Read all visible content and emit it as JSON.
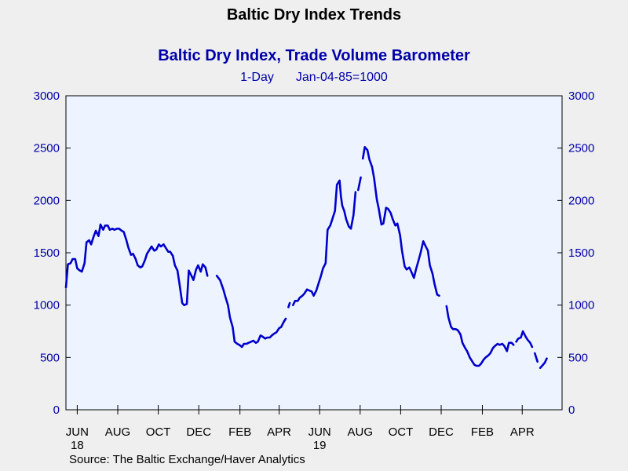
{
  "header": {
    "title": "Baltic Dry Index Trends"
  },
  "chart_data": {
    "type": "line",
    "title": "Baltic Dry Index, Trade Volume Barometer",
    "subtitle_left": "1-Day",
    "subtitle_right": "Jan-04-85=1000",
    "source": "Source:  The Baltic Exchange/Haver Analytics",
    "ylim": [
      0,
      3000
    ],
    "yticks": [
      0,
      500,
      1000,
      1500,
      2000,
      2500,
      3000
    ],
    "x_range": [
      "2018-05-15",
      "2020-05-31"
    ],
    "x_tick_labels": [
      {
        "date": "2018-06-01",
        "label": "JUN",
        "year": "18"
      },
      {
        "date": "2018-08-01",
        "label": "AUG"
      },
      {
        "date": "2018-10-01",
        "label": "OCT"
      },
      {
        "date": "2018-12-01",
        "label": "DEC"
      },
      {
        "date": "2019-02-01",
        "label": "FEB"
      },
      {
        "date": "2019-04-01",
        "label": "APR"
      },
      {
        "date": "2019-06-01",
        "label": "JUN",
        "year": "19"
      },
      {
        "date": "2019-08-01",
        "label": "AUG"
      },
      {
        "date": "2019-10-01",
        "label": "OCT"
      },
      {
        "date": "2019-12-01",
        "label": "DEC"
      },
      {
        "date": "2020-02-01",
        "label": "FEB"
      },
      {
        "date": "2020-04-01",
        "label": "APR"
      }
    ],
    "grid": false,
    "color": "#0000cc",
    "series": [
      {
        "segments": [
          [
            [
              "2018-05-15",
              1170
            ],
            [
              "2018-05-18",
              1390
            ],
            [
              "2018-05-22",
              1400
            ],
            [
              "2018-05-25",
              1440
            ],
            [
              "2018-05-29",
              1440
            ],
            [
              "2018-06-01",
              1350
            ],
            [
              "2018-06-05",
              1330
            ],
            [
              "2018-06-08",
              1320
            ],
            [
              "2018-06-12",
              1400
            ],
            [
              "2018-06-15",
              1600
            ],
            [
              "2018-06-19",
              1620
            ],
            [
              "2018-06-22",
              1580
            ],
            [
              "2018-06-26",
              1660
            ],
            [
              "2018-06-29",
              1710
            ],
            [
              "2018-07-03",
              1660
            ],
            [
              "2018-07-06",
              1770
            ],
            [
              "2018-07-10",
              1720
            ],
            [
              "2018-07-13",
              1760
            ],
            [
              "2018-07-17",
              1760
            ],
            [
              "2018-07-20",
              1720
            ],
            [
              "2018-07-24",
              1730
            ],
            [
              "2018-07-27",
              1720
            ],
            [
              "2018-07-31",
              1730
            ],
            [
              "2018-08-03",
              1730
            ],
            [
              "2018-08-07",
              1710
            ],
            [
              "2018-08-10",
              1700
            ],
            [
              "2018-08-14",
              1620
            ],
            [
              "2018-08-17",
              1550
            ],
            [
              "2018-08-21",
              1480
            ],
            [
              "2018-08-24",
              1490
            ],
            [
              "2018-08-28",
              1440
            ],
            [
              "2018-08-31",
              1380
            ],
            [
              "2018-09-04",
              1360
            ],
            [
              "2018-09-07",
              1370
            ],
            [
              "2018-09-11",
              1430
            ],
            [
              "2018-09-14",
              1490
            ],
            [
              "2018-09-18",
              1530
            ],
            [
              "2018-09-21",
              1560
            ],
            [
              "2018-09-25",
              1520
            ],
            [
              "2018-09-28",
              1530
            ],
            [
              "2018-10-02",
              1580
            ],
            [
              "2018-10-05",
              1560
            ],
            [
              "2018-10-09",
              1580
            ],
            [
              "2018-10-12",
              1550
            ],
            [
              "2018-10-16",
              1510
            ],
            [
              "2018-10-19",
              1510
            ],
            [
              "2018-10-23",
              1470
            ],
            [
              "2018-10-26",
              1380
            ],
            [
              "2018-10-30",
              1330
            ],
            [
              "2018-11-02",
              1200
            ],
            [
              "2018-11-06",
              1020
            ],
            [
              "2018-11-09",
              1000
            ],
            [
              "2018-11-13",
              1010
            ],
            [
              "2018-11-16",
              1330
            ],
            [
              "2018-11-20",
              1280
            ],
            [
              "2018-11-23",
              1240
            ],
            [
              "2018-11-27",
              1340
            ],
            [
              "2018-11-30",
              1380
            ],
            [
              "2018-12-04",
              1320
            ],
            [
              "2018-12-07",
              1390
            ],
            [
              "2018-12-11",
              1360
            ],
            [
              "2018-12-14",
              1280
            ]
          ],
          [
            [
              "2018-12-28",
              1280
            ],
            [
              "2019-01-02",
              1240
            ],
            [
              "2019-01-07",
              1150
            ],
            [
              "2019-01-10",
              1080
            ],
            [
              "2019-01-14",
              1000
            ],
            [
              "2019-01-17",
              880
            ],
            [
              "2019-01-21",
              790
            ],
            [
              "2019-01-24",
              650
            ],
            [
              "2019-01-28",
              630
            ],
            [
              "2019-01-31",
              620
            ],
            [
              "2019-02-04",
              600
            ],
            [
              "2019-02-07",
              630
            ],
            [
              "2019-02-11",
              630
            ],
            [
              "2019-02-14",
              640
            ],
            [
              "2019-02-18",
              650
            ],
            [
              "2019-02-21",
              660
            ],
            [
              "2019-02-25",
              640
            ],
            [
              "2019-02-28",
              650
            ],
            [
              "2019-03-04",
              710
            ],
            [
              "2019-03-07",
              700
            ],
            [
              "2019-03-11",
              680
            ],
            [
              "2019-03-14",
              690
            ],
            [
              "2019-03-18",
              690
            ],
            [
              "2019-03-21",
              710
            ],
            [
              "2019-03-25",
              730
            ],
            [
              "2019-03-28",
              740
            ],
            [
              "2019-04-01",
              780
            ],
            [
              "2019-04-04",
              790
            ],
            [
              "2019-04-08",
              840
            ],
            [
              "2019-04-11",
              870
            ]
          ],
          [
            [
              "2019-04-15",
              980
            ],
            [
              "2019-04-17",
              1020
            ]
          ],
          [
            [
              "2019-04-22",
              1000
            ],
            [
              "2019-04-25",
              1040
            ],
            [
              "2019-04-29",
              1040
            ],
            [
              "2019-05-02",
              1070
            ],
            [
              "2019-05-06",
              1090
            ],
            [
              "2019-05-09",
              1110
            ],
            [
              "2019-05-13",
              1150
            ],
            [
              "2019-05-16",
              1140
            ],
            [
              "2019-05-20",
              1130
            ],
            [
              "2019-05-23",
              1090
            ],
            [
              "2019-05-27",
              1140
            ],
            [
              "2019-05-30",
              1200
            ],
            [
              "2019-06-03",
              1280
            ],
            [
              "2019-06-06",
              1350
            ],
            [
              "2019-06-10",
              1400
            ],
            [
              "2019-06-13",
              1720
            ],
            [
              "2019-06-17",
              1760
            ],
            [
              "2019-06-20",
              1820
            ],
            [
              "2019-06-24",
              1900
            ],
            [
              "2019-06-27",
              2150
            ],
            [
              "2019-07-01",
              2190
            ],
            [
              "2019-07-03",
              2040
            ],
            [
              "2019-07-05",
              1950
            ],
            [
              "2019-07-08",
              1900
            ],
            [
              "2019-07-11",
              1820
            ],
            [
              "2019-07-15",
              1750
            ],
            [
              "2019-07-18",
              1730
            ],
            [
              "2019-07-22",
              1860
            ],
            [
              "2019-07-25",
              2080
            ]
          ],
          [
            [
              "2019-07-29",
              2100
            ],
            [
              "2019-08-02",
              2220
            ]
          ],
          [
            [
              "2019-08-05",
              2400
            ],
            [
              "2019-08-08",
              2510
            ],
            [
              "2019-08-12",
              2480
            ],
            [
              "2019-08-15",
              2390
            ],
            [
              "2019-08-19",
              2320
            ],
            [
              "2019-08-22",
              2210
            ],
            [
              "2019-08-26",
              2010
            ],
            [
              "2019-08-29",
              1920
            ],
            [
              "2019-09-02",
              1770
            ],
            [
              "2019-09-05",
              1780
            ],
            [
              "2019-09-09",
              1930
            ],
            [
              "2019-09-12",
              1920
            ],
            [
              "2019-09-16",
              1880
            ],
            [
              "2019-09-19",
              1820
            ],
            [
              "2019-09-23",
              1760
            ],
            [
              "2019-09-26",
              1780
            ],
            [
              "2019-09-30",
              1670
            ],
            [
              "2019-10-03",
              1520
            ],
            [
              "2019-10-07",
              1370
            ],
            [
              "2019-10-10",
              1340
            ],
            [
              "2019-10-14",
              1360
            ],
            [
              "2019-10-17",
              1320
            ],
            [
              "2019-10-21",
              1260
            ],
            [
              "2019-10-24",
              1340
            ],
            [
              "2019-10-28",
              1430
            ],
            [
              "2019-10-31",
              1500
            ],
            [
              "2019-11-04",
              1610
            ],
            [
              "2019-11-07",
              1570
            ],
            [
              "2019-11-11",
              1520
            ],
            [
              "2019-11-14",
              1380
            ],
            [
              "2019-11-18",
              1300
            ],
            [
              "2019-11-21",
              1200
            ],
            [
              "2019-11-25",
              1100
            ],
            [
              "2019-11-28",
              1090
            ]
          ],
          [
            [
              "2019-12-09",
              990
            ],
            [
              "2019-12-12",
              880
            ],
            [
              "2019-12-16",
              790
            ],
            [
              "2019-12-19",
              770
            ],
            [
              "2019-12-23",
              770
            ],
            [
              "2019-12-26",
              760
            ],
            [
              "2019-12-30",
              720
            ],
            [
              "2020-01-02",
              640
            ],
            [
              "2020-01-06",
              590
            ],
            [
              "2020-01-09",
              560
            ],
            [
              "2020-01-13",
              500
            ],
            [
              "2020-01-16",
              470
            ],
            [
              "2020-01-20",
              430
            ],
            [
              "2020-01-23",
              420
            ],
            [
              "2020-01-27",
              420
            ],
            [
              "2020-01-30",
              440
            ],
            [
              "2020-02-03",
              480
            ],
            [
              "2020-02-06",
              500
            ],
            [
              "2020-02-10",
              520
            ],
            [
              "2020-02-13",
              540
            ],
            [
              "2020-02-17",
              590
            ],
            [
              "2020-02-20",
              610
            ],
            [
              "2020-02-24",
              630
            ],
            [
              "2020-02-27",
              620
            ],
            [
              "2020-03-02",
              630
            ],
            [
              "2020-03-05",
              610
            ],
            [
              "2020-03-09",
              560
            ],
            [
              "2020-03-12",
              640
            ],
            [
              "2020-03-16",
              640
            ],
            [
              "2020-03-19",
              620
            ]
          ],
          [
            [
              "2020-03-23",
              650
            ],
            [
              "2020-03-26",
              680
            ],
            [
              "2020-03-30",
              690
            ],
            [
              "2020-04-02",
              750
            ],
            [
              "2020-04-06",
              700
            ],
            [
              "2020-04-09",
              670
            ],
            [
              "2020-04-13",
              640
            ],
            [
              "2020-04-16",
              600
            ]
          ],
          [
            [
              "2020-04-20",
              540
            ],
            [
              "2020-04-24",
              460
            ]
          ],
          [
            [
              "2020-04-28",
              400
            ],
            [
              "2020-05-01",
              420
            ],
            [
              "2020-05-05",
              450
            ],
            [
              "2020-05-08",
              490
            ]
          ]
        ]
      }
    ]
  }
}
